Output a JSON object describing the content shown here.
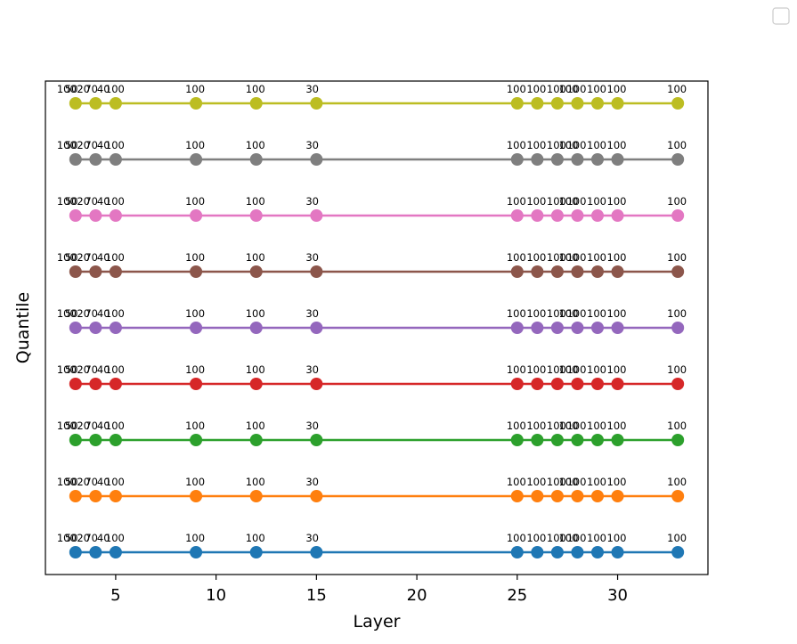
{
  "chart_data": {
    "type": "line",
    "title": "",
    "xlabel": "Layer",
    "ylabel": "Quantile",
    "xlim": [
      1.5,
      34.5
    ],
    "x_ticks": [
      5,
      10,
      15,
      20,
      25,
      30
    ],
    "y_ticks_visible": false,
    "grid": false,
    "legend": {
      "placement": "top-right",
      "entries": []
    },
    "x": [
      3,
      4,
      5,
      9,
      12,
      15,
      25,
      26,
      27,
      28,
      29,
      30,
      33
    ],
    "point_labels": [
      "50",
      "70",
      "100",
      "100",
      "100",
      "30",
      "100",
      "100",
      "100",
      "100",
      "100",
      "100",
      "100"
    ],
    "extra_point_labels": [
      {
        "x": 3,
        "label": "100"
      },
      {
        "x": 4,
        "label": "20"
      },
      {
        "x": 5,
        "label": "40"
      },
      {
        "x": 28,
        "label": "100"
      }
    ],
    "series": [
      {
        "level": 0,
        "color": "#1f77b4"
      },
      {
        "level": 1,
        "color": "#ff7f0e"
      },
      {
        "level": 2,
        "color": "#2ca02c"
      },
      {
        "level": 3,
        "color": "#d62728"
      },
      {
        "level": 4,
        "color": "#9467bd"
      },
      {
        "level": 5,
        "color": "#8c564b"
      },
      {
        "level": 6,
        "color": "#e377c2"
      },
      {
        "level": 7,
        "color": "#7f7f7f"
      },
      {
        "level": 8,
        "color": "#bcbd22"
      }
    ]
  }
}
